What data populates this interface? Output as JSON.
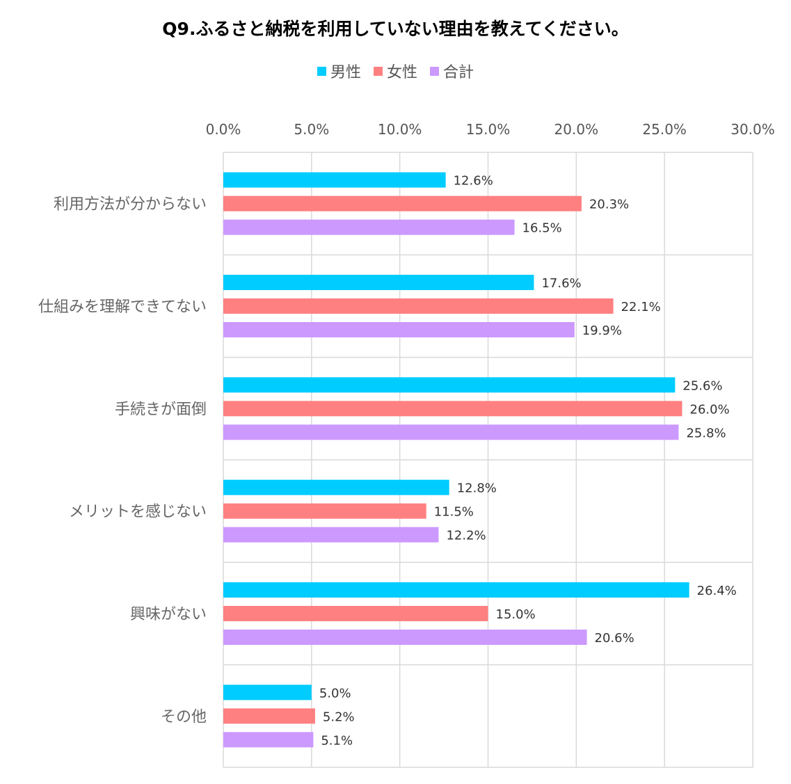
{
  "chart_data": {
    "type": "bar",
    "orientation": "horizontal",
    "title": "Q9.ふるさと納税を利用していない理由を教えてください。",
    "categories": [
      "利用方法が分からない",
      "仕組みを理解できてない",
      "手続きが面倒",
      "メリットを感じない",
      "興味がない",
      "その他"
    ],
    "series": [
      {
        "name": "男性",
        "color": "#00CCFF",
        "values": [
          12.6,
          17.6,
          25.6,
          12.8,
          26.4,
          5.0
        ]
      },
      {
        "name": "女性",
        "color": "#FF8080",
        "values": [
          20.3,
          22.1,
          26.0,
          11.5,
          15.0,
          5.2
        ]
      },
      {
        "name": "合計",
        "color": "#CC99FF",
        "values": [
          16.5,
          19.9,
          25.8,
          12.2,
          20.6,
          5.1
        ]
      }
    ],
    "xlim": [
      0,
      30
    ],
    "x_ticks": [
      "0.0%",
      "5.0%",
      "10.0%",
      "15.0%",
      "20.0%",
      "25.0%",
      "30.0%"
    ],
    "value_suffix": "%",
    "legend_position": "top",
    "axis_position": "top",
    "grid": true
  }
}
